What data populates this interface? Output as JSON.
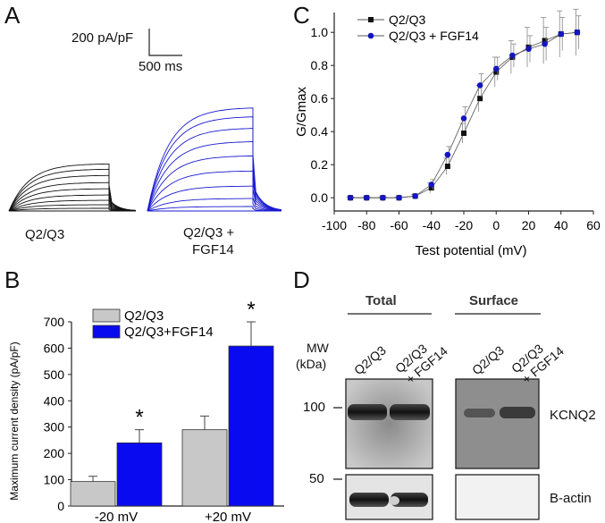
{
  "panels": {
    "a": "A",
    "b": "B",
    "c": "C",
    "d": "D"
  },
  "panel_a": {
    "scale_y": "200 pA/pF",
    "scale_x": "500 ms",
    "label_ctrl": "Q2/Q3",
    "label_fgf_line1": "Q2/Q3 +",
    "label_fgf_line2": "FGF14",
    "colors": {
      "ctrl": "#111111",
      "fgf": "#1a1ad0"
    }
  },
  "panel_d": {
    "header_total": "Total",
    "header_surface": "Surface",
    "mw_line1": "MW",
    "mw_line2": "(kDa)",
    "lane_labels": [
      "Q2/Q3",
      "Q2/Q3\n+ FGF14",
      "Q2/Q3",
      "Q2/Q3\n+ FGF14"
    ],
    "lane1": "Q2/Q3",
    "lane2_line1": "Q2/Q3",
    "lane2_line2": "+ FGF14",
    "lane3": "Q2/Q3",
    "lane4_line1": "Q2/Q3",
    "lane4_line2": "+ FGF14",
    "marker_100": "100",
    "marker_50": "50",
    "band_kcnq2": "KCNQ2",
    "band_actin": "B-actin"
  },
  "chart_data": [
    {
      "type": "bar",
      "panel": "B",
      "categories": [
        "-20 mV",
        "+20 mV"
      ],
      "series": [
        {
          "name": "Q2/Q3",
          "values": [
            93,
            290
          ],
          "errors": [
            20,
            52
          ],
          "color": "#c8c8c8"
        },
        {
          "name": "Q2/Q3+FGF14",
          "values": [
            240,
            608
          ],
          "errors": [
            50,
            92
          ],
          "color": "#0a0af0"
        }
      ],
      "ylabel": "Maximum current density (pA/pF)",
      "ylim": [
        0,
        700
      ],
      "yticks": [
        0,
        100,
        200,
        300,
        400,
        500,
        600,
        700
      ],
      "annotations": [
        "*",
        "*"
      ],
      "legend": "top-left"
    },
    {
      "type": "line",
      "panel": "C",
      "x": [
        -90,
        -80,
        -70,
        -60,
        -50,
        -40,
        -30,
        -20,
        -10,
        0,
        10,
        20,
        30,
        40,
        50
      ],
      "series": [
        {
          "name": "Q2/Q3",
          "marker": "square",
          "color": "#111111",
          "values": [
            0.0,
            0.0,
            0.0,
            0.0,
            0.01,
            0.06,
            0.19,
            0.39,
            0.6,
            0.76,
            0.85,
            0.91,
            0.95,
            0.99,
            1.0
          ],
          "errors": [
            0.005,
            0.005,
            0.005,
            0.005,
            0.01,
            0.03,
            0.05,
            0.06,
            0.08,
            0.09,
            0.1,
            0.12,
            0.14,
            0.14,
            0.14
          ]
        },
        {
          "name": "Q2/Q3 + FGF14",
          "marker": "circle",
          "color": "#1515c0",
          "values": [
            0.0,
            0.0,
            0.0,
            0.0,
            0.01,
            0.08,
            0.26,
            0.48,
            0.68,
            0.78,
            0.86,
            0.9,
            0.93,
            0.99,
            1.0
          ],
          "errors": [
            0.005,
            0.005,
            0.005,
            0.005,
            0.01,
            0.03,
            0.05,
            0.07,
            0.07,
            0.07,
            0.07,
            0.08,
            0.1,
            0.1,
            0.1
          ]
        }
      ],
      "xlabel": "Test potential (mV)",
      "ylabel": "G/Gmax",
      "xlim": [
        -100,
        60
      ],
      "ylim": [
        -0.08,
        1.12
      ],
      "xticks": [
        -100,
        -80,
        -60,
        -40,
        -20,
        0,
        20,
        40,
        60
      ],
      "yticks": [
        0.0,
        0.2,
        0.4,
        0.6,
        0.8,
        1.0
      ],
      "legend": "top-left"
    }
  ]
}
